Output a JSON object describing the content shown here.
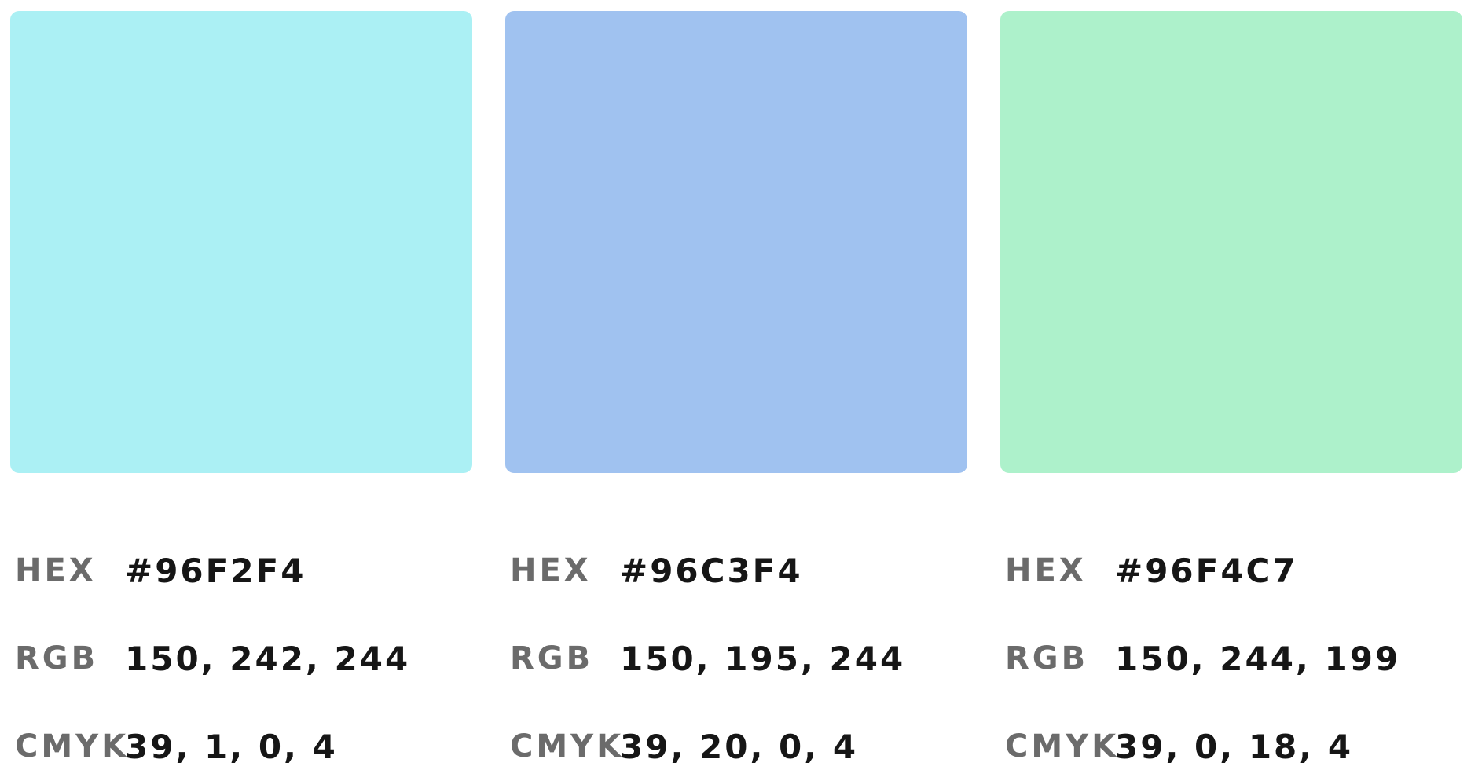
{
  "labels": {
    "hex": "HEX",
    "rgb": "RGB",
    "cmyk": "CMYK"
  },
  "swatches": [
    {
      "color": "#96F2F4",
      "display_color": "#ABF0F4",
      "hex": "#96F2F4",
      "rgb": "150, 242, 244",
      "cmyk": "39, 1, 0, 4"
    },
    {
      "color": "#96C3F4",
      "display_color": "#A0C2F0",
      "hex": "#96C3F4",
      "rgb": "150, 195, 244",
      "cmyk": "39, 20, 0, 4"
    },
    {
      "color": "#96F4C7",
      "display_color": "#ADF1CB",
      "hex": "#96F4C7",
      "rgb": "150, 244, 199",
      "cmyk": "39, 0, 18, 4"
    }
  ]
}
